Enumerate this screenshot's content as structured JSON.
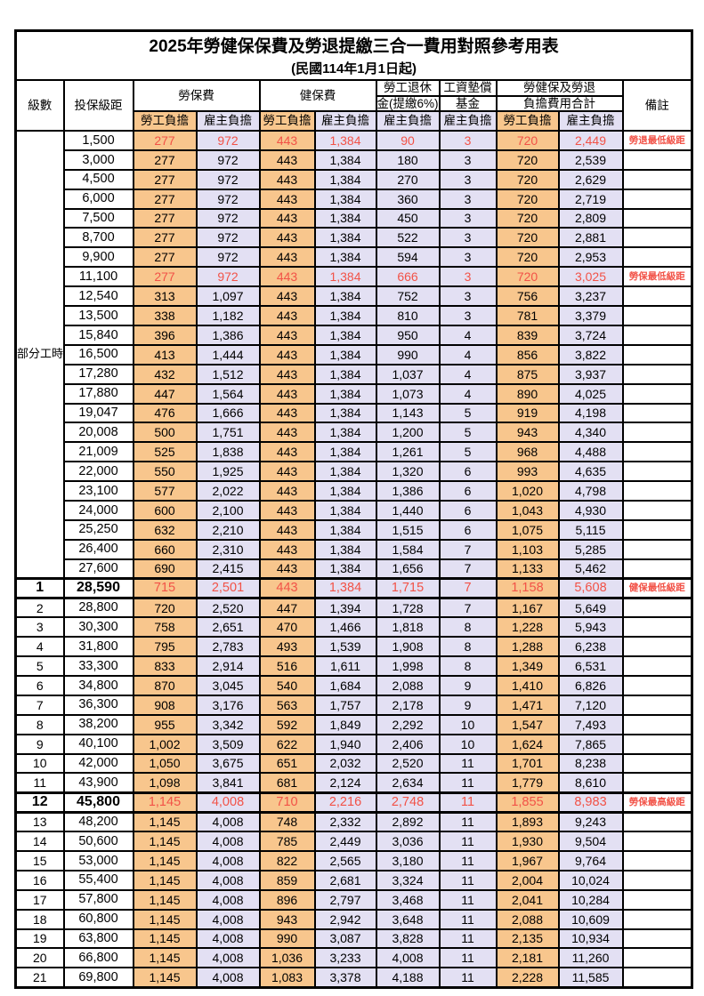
{
  "title": "2025年勞健保保費及勞退提繳三合一費用對照參考用表",
  "subtitle": "(民國114年1月1日起)",
  "colors": {
    "employee_column_bg": "#F8C68D",
    "employer_column_bg": "#E3E0F3",
    "highlight_red": "#F25247",
    "border_black": "#000000"
  },
  "header": {
    "level": "級數",
    "bracket": "投保級距",
    "labor_insurance": "勞保費",
    "health_insurance": "健保費",
    "pension_line1": "勞工退休",
    "pension_line2": "金(提繳6%)",
    "wage_fund_line1": "工資墊償",
    "wage_fund_line2": "基金",
    "total_line1": "勞健保及勞退",
    "total_line2": "負擔費用合計",
    "remark": "備註",
    "employee_share": "勞工負擔",
    "employer_share": "雇主負擔"
  },
  "part_time_label": "部分工時",
  "rows": [
    {
      "group": "pt",
      "level": "",
      "bracket": "1,500",
      "values": [
        "277",
        "972",
        "443",
        "1,384",
        "90",
        "3",
        "720",
        "2,449"
      ],
      "remark": "勞退最低級距",
      "red": true
    },
    {
      "group": "pt",
      "level": "",
      "bracket": "3,000",
      "values": [
        "277",
        "972",
        "443",
        "1,384",
        "180",
        "3",
        "720",
        "2,539"
      ],
      "remark": ""
    },
    {
      "group": "pt",
      "level": "",
      "bracket": "4,500",
      "values": [
        "277",
        "972",
        "443",
        "1,384",
        "270",
        "3",
        "720",
        "2,629"
      ],
      "remark": ""
    },
    {
      "group": "pt",
      "level": "",
      "bracket": "6,000",
      "values": [
        "277",
        "972",
        "443",
        "1,384",
        "360",
        "3",
        "720",
        "2,719"
      ],
      "remark": ""
    },
    {
      "group": "pt",
      "level": "",
      "bracket": "7,500",
      "values": [
        "277",
        "972",
        "443",
        "1,384",
        "450",
        "3",
        "720",
        "2,809"
      ],
      "remark": ""
    },
    {
      "group": "pt",
      "level": "",
      "bracket": "8,700",
      "values": [
        "277",
        "972",
        "443",
        "1,384",
        "522",
        "3",
        "720",
        "2,881"
      ],
      "remark": ""
    },
    {
      "group": "pt",
      "level": "",
      "bracket": "9,900",
      "values": [
        "277",
        "972",
        "443",
        "1,384",
        "594",
        "3",
        "720",
        "2,953"
      ],
      "remark": ""
    },
    {
      "group": "pt",
      "level": "",
      "bracket": "11,100",
      "values": [
        "277",
        "972",
        "443",
        "1,384",
        "666",
        "3",
        "720",
        "3,025"
      ],
      "remark": "勞保最低級距",
      "red": true
    },
    {
      "group": "pt",
      "level": "",
      "bracket": "12,540",
      "values": [
        "313",
        "1,097",
        "443",
        "1,384",
        "752",
        "3",
        "756",
        "3,237"
      ],
      "remark": ""
    },
    {
      "group": "pt",
      "level": "",
      "bracket": "13,500",
      "values": [
        "338",
        "1,182",
        "443",
        "1,384",
        "810",
        "3",
        "781",
        "3,379"
      ],
      "remark": ""
    },
    {
      "group": "pt",
      "level": "",
      "bracket": "15,840",
      "values": [
        "396",
        "1,386",
        "443",
        "1,384",
        "950",
        "4",
        "839",
        "3,724"
      ],
      "remark": ""
    },
    {
      "group": "pt",
      "level": "",
      "bracket": "16,500",
      "values": [
        "413",
        "1,444",
        "443",
        "1,384",
        "990",
        "4",
        "856",
        "3,822"
      ],
      "remark": ""
    },
    {
      "group": "pt",
      "level": "",
      "bracket": "17,280",
      "values": [
        "432",
        "1,512",
        "443",
        "1,384",
        "1,037",
        "4",
        "875",
        "3,937"
      ],
      "remark": ""
    },
    {
      "group": "pt",
      "level": "",
      "bracket": "17,880",
      "values": [
        "447",
        "1,564",
        "443",
        "1,384",
        "1,073",
        "4",
        "890",
        "4,025"
      ],
      "remark": ""
    },
    {
      "group": "pt",
      "level": "",
      "bracket": "19,047",
      "values": [
        "476",
        "1,666",
        "443",
        "1,384",
        "1,143",
        "5",
        "919",
        "4,198"
      ],
      "remark": ""
    },
    {
      "group": "pt",
      "level": "",
      "bracket": "20,008",
      "values": [
        "500",
        "1,751",
        "443",
        "1,384",
        "1,200",
        "5",
        "943",
        "4,340"
      ],
      "remark": ""
    },
    {
      "group": "pt",
      "level": "",
      "bracket": "21,009",
      "values": [
        "525",
        "1,838",
        "443",
        "1,384",
        "1,261",
        "5",
        "968",
        "4,488"
      ],
      "remark": ""
    },
    {
      "group": "pt",
      "level": "",
      "bracket": "22,000",
      "values": [
        "550",
        "1,925",
        "443",
        "1,384",
        "1,320",
        "6",
        "993",
        "4,635"
      ],
      "remark": ""
    },
    {
      "group": "pt",
      "level": "",
      "bracket": "23,100",
      "values": [
        "577",
        "2,022",
        "443",
        "1,384",
        "1,386",
        "6",
        "1,020",
        "4,798"
      ],
      "remark": ""
    },
    {
      "group": "pt",
      "level": "",
      "bracket": "24,000",
      "values": [
        "600",
        "2,100",
        "443",
        "1,384",
        "1,440",
        "6",
        "1,043",
        "4,930"
      ],
      "remark": ""
    },
    {
      "group": "pt",
      "level": "",
      "bracket": "25,250",
      "values": [
        "632",
        "2,210",
        "443",
        "1,384",
        "1,515",
        "6",
        "1,075",
        "5,115"
      ],
      "remark": ""
    },
    {
      "group": "pt",
      "level": "",
      "bracket": "26,400",
      "values": [
        "660",
        "2,310",
        "443",
        "1,384",
        "1,584",
        "7",
        "1,103",
        "5,285"
      ],
      "remark": ""
    },
    {
      "group": "pt",
      "level": "",
      "bracket": "27,600",
      "values": [
        "690",
        "2,415",
        "443",
        "1,384",
        "1,656",
        "7",
        "1,133",
        "5,462"
      ],
      "remark": ""
    },
    {
      "level": "1",
      "bracket": "28,590",
      "values": [
        "715",
        "2,501",
        "443",
        "1,384",
        "1,715",
        "7",
        "1,158",
        "5,608"
      ],
      "remark": "健保最低級距",
      "red": true,
      "emphasis": true
    },
    {
      "level": "2",
      "bracket": "28,800",
      "values": [
        "720",
        "2,520",
        "447",
        "1,394",
        "1,728",
        "7",
        "1,167",
        "5,649"
      ],
      "remark": ""
    },
    {
      "level": "3",
      "bracket": "30,300",
      "values": [
        "758",
        "2,651",
        "470",
        "1,466",
        "1,818",
        "8",
        "1,228",
        "5,943"
      ],
      "remark": ""
    },
    {
      "level": "4",
      "bracket": "31,800",
      "values": [
        "795",
        "2,783",
        "493",
        "1,539",
        "1,908",
        "8",
        "1,288",
        "6,238"
      ],
      "remark": ""
    },
    {
      "level": "5",
      "bracket": "33,300",
      "values": [
        "833",
        "2,914",
        "516",
        "1,611",
        "1,998",
        "8",
        "1,349",
        "6,531"
      ],
      "remark": ""
    },
    {
      "level": "6",
      "bracket": "34,800",
      "values": [
        "870",
        "3,045",
        "540",
        "1,684",
        "2,088",
        "9",
        "1,410",
        "6,826"
      ],
      "remark": ""
    },
    {
      "level": "7",
      "bracket": "36,300",
      "values": [
        "908",
        "3,176",
        "563",
        "1,757",
        "2,178",
        "9",
        "1,471",
        "7,120"
      ],
      "remark": ""
    },
    {
      "level": "8",
      "bracket": "38,200",
      "values": [
        "955",
        "3,342",
        "592",
        "1,849",
        "2,292",
        "10",
        "1,547",
        "7,493"
      ],
      "remark": ""
    },
    {
      "level": "9",
      "bracket": "40,100",
      "values": [
        "1,002",
        "3,509",
        "622",
        "1,940",
        "2,406",
        "10",
        "1,624",
        "7,865"
      ],
      "remark": ""
    },
    {
      "level": "10",
      "bracket": "42,000",
      "values": [
        "1,050",
        "3,675",
        "651",
        "2,032",
        "2,520",
        "11",
        "1,701",
        "8,238"
      ],
      "remark": ""
    },
    {
      "level": "11",
      "bracket": "43,900",
      "values": [
        "1,098",
        "3,841",
        "681",
        "2,124",
        "2,634",
        "11",
        "1,779",
        "8,610"
      ],
      "remark": ""
    },
    {
      "level": "12",
      "bracket": "45,800",
      "values": [
        "1,145",
        "4,008",
        "710",
        "2,216",
        "2,748",
        "11",
        "1,855",
        "8,983"
      ],
      "remark": "勞保最高級距",
      "red": true,
      "emphasis": true
    },
    {
      "level": "13",
      "bracket": "48,200",
      "values": [
        "1,145",
        "4,008",
        "748",
        "2,332",
        "2,892",
        "11",
        "1,893",
        "9,243"
      ],
      "remark": ""
    },
    {
      "level": "14",
      "bracket": "50,600",
      "values": [
        "1,145",
        "4,008",
        "785",
        "2,449",
        "3,036",
        "11",
        "1,930",
        "9,504"
      ],
      "remark": ""
    },
    {
      "level": "15",
      "bracket": "53,000",
      "values": [
        "1,145",
        "4,008",
        "822",
        "2,565",
        "3,180",
        "11",
        "1,967",
        "9,764"
      ],
      "remark": ""
    },
    {
      "level": "16",
      "bracket": "55,400",
      "values": [
        "1,145",
        "4,008",
        "859",
        "2,681",
        "3,324",
        "11",
        "2,004",
        "10,024"
      ],
      "remark": ""
    },
    {
      "level": "17",
      "bracket": "57,800",
      "values": [
        "1,145",
        "4,008",
        "896",
        "2,797",
        "3,468",
        "11",
        "2,041",
        "10,284"
      ],
      "remark": ""
    },
    {
      "level": "18",
      "bracket": "60,800",
      "values": [
        "1,145",
        "4,008",
        "943",
        "2,942",
        "3,648",
        "11",
        "2,088",
        "10,609"
      ],
      "remark": ""
    },
    {
      "level": "19",
      "bracket": "63,800",
      "values": [
        "1,145",
        "4,008",
        "990",
        "3,087",
        "3,828",
        "11",
        "2,135",
        "10,934"
      ],
      "remark": ""
    },
    {
      "level": "20",
      "bracket": "66,800",
      "values": [
        "1,145",
        "4,008",
        "1,036",
        "3,233",
        "4,008",
        "11",
        "2,181",
        "11,260"
      ],
      "remark": ""
    },
    {
      "level": "21",
      "bracket": "69,800",
      "values": [
        "1,145",
        "4,008",
        "1,083",
        "3,378",
        "4,188",
        "11",
        "2,228",
        "11,585"
      ],
      "remark": ""
    }
  ]
}
